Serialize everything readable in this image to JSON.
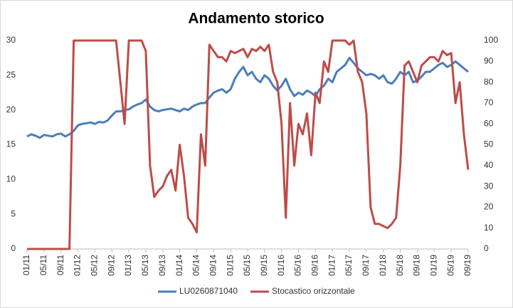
{
  "chart_data": {
    "type": "line",
    "title": "Andamento storico",
    "categories": [
      "01/11",
      null,
      null,
      null,
      "05/11",
      null,
      null,
      null,
      "09/11",
      null,
      null,
      null,
      "01/12",
      null,
      null,
      null,
      "05/12",
      null,
      null,
      null,
      "09/12",
      null,
      null,
      null,
      "01/13",
      null,
      null,
      null,
      "05/13",
      null,
      null,
      null,
      "09/13",
      null,
      null,
      null,
      "01/14",
      null,
      null,
      null,
      "05/14",
      null,
      null,
      null,
      "09/14",
      null,
      null,
      null,
      "01/15",
      null,
      null,
      null,
      "05/15",
      null,
      null,
      null,
      "09/15",
      null,
      null,
      null,
      "01/16",
      null,
      null,
      null,
      "05/16",
      null,
      null,
      null,
      "09/16",
      null,
      null,
      null,
      "01/17",
      null,
      null,
      null,
      "05/17",
      null,
      null,
      null,
      "09/17",
      null,
      null,
      null,
      "01/18",
      null,
      null,
      null,
      "05/18",
      null,
      null,
      null,
      "09/18",
      null,
      null,
      null,
      "01/19",
      null,
      null,
      null,
      "05/19",
      null,
      null,
      null,
      "09/19"
    ],
    "series": [
      {
        "name": "LU0260871040",
        "color": "#4a7ebb",
        "values": [
          16.2,
          16.5,
          16.3,
          16.0,
          16.4,
          16.3,
          16.2,
          16.5,
          16.6,
          16.2,
          16.5,
          17.0,
          17.8,
          18.0,
          18.1,
          18.2,
          18.0,
          18.3,
          18.2,
          18.5,
          19.2,
          19.8,
          19.8,
          20.0,
          20.1,
          20.5,
          20.8,
          21.0,
          21.5,
          20.5,
          20.0,
          19.8,
          20.0,
          20.1,
          20.2,
          20.0,
          19.8,
          20.2,
          20.0,
          20.5,
          20.8,
          21.0,
          21.0,
          21.8,
          22.5,
          22.8,
          23.0,
          22.5,
          23.0,
          24.5,
          25.5,
          26.2,
          25.0,
          25.5,
          24.5,
          24.0,
          25.0,
          24.5,
          23.5,
          22.8,
          23.5,
          24.5,
          23.0,
          22.0,
          22.5,
          22.2,
          22.8,
          22.5,
          22.0,
          23.0,
          23.5,
          24.5,
          24.0,
          25.5,
          26.0,
          26.5,
          27.5,
          26.8,
          26.0,
          25.5,
          25.0,
          25.2,
          25.0,
          24.5,
          25.0,
          24.0,
          23.8,
          24.5,
          25.5,
          25.0,
          25.5,
          24.0,
          24.2,
          24.8,
          25.5,
          25.5,
          26.0,
          26.5,
          26.8,
          26.2,
          26.5,
          27.0,
          26.5,
          26.0,
          25.5
        ]
      },
      {
        "name": "Stocastico orizzontale",
        "color": "#be4b48",
        "axis": "y2",
        "values": [
          0,
          0,
          0,
          0,
          0,
          0,
          0,
          0,
          0,
          0,
          0,
          100,
          100,
          100,
          100,
          100,
          100,
          100,
          100,
          100,
          100,
          100,
          80,
          60,
          100,
          100,
          100,
          100,
          95,
          40,
          25,
          28,
          30,
          35,
          38,
          28,
          50,
          35,
          15,
          12,
          8,
          55,
          40,
          98,
          95,
          92,
          92,
          90,
          95,
          94,
          95,
          96,
          92,
          96,
          95,
          97,
          95,
          98,
          85,
          80,
          60,
          15,
          70,
          40,
          60,
          55,
          65,
          45,
          75,
          70,
          90,
          85,
          100,
          100,
          100,
          100,
          98,
          100,
          85,
          80,
          65,
          20,
          12,
          12,
          11,
          10,
          12,
          15,
          40,
          88,
          90,
          85,
          80,
          88,
          90,
          92,
          92,
          90,
          95,
          93,
          94,
          70,
          80,
          55,
          38
        ]
      }
    ],
    "ylim": [
      0,
      30
    ],
    "yticks": [
      0,
      5,
      10,
      15,
      20,
      25,
      30
    ],
    "y2lim": [
      0,
      100
    ],
    "y2ticks": [
      0,
      10,
      20,
      30,
      40,
      50,
      60,
      70,
      80,
      90,
      100
    ],
    "legend": "bottom"
  }
}
